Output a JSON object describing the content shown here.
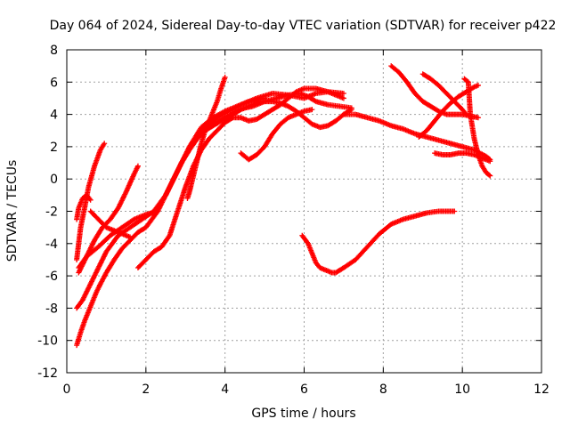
{
  "chart_data": {
    "type": "scatter",
    "title": "Day 064 of 2024, Sidereal Day-to-day VTEC variation (SDTVAR) for receiver p422",
    "xlabel": "GPS time / hours",
    "ylabel": "SDTVAR / TECUs",
    "xlim": [
      0,
      12
    ],
    "ylim": [
      -12,
      8
    ],
    "xticks": [
      "0",
      "2",
      "4",
      "6",
      "8",
      "10",
      "12"
    ],
    "yticks": [
      "-12",
      "-10",
      "-8",
      "-6",
      "-4",
      "-2",
      "0",
      "2",
      "4",
      "6",
      "8"
    ],
    "grid": true,
    "marker": "+",
    "color": "#ff0000",
    "series": [
      {
        "x": [
          0.25,
          0.35,
          0.45,
          0.55,
          0.7,
          0.85,
          0.95
        ],
        "y": [
          -5.0,
          -3.0,
          -1.8,
          -0.5,
          0.8,
          1.8,
          2.2
        ]
      },
      {
        "x": [
          0.25,
          0.3,
          0.4,
          0.5,
          0.6
        ],
        "y": [
          -2.5,
          -1.8,
          -1.2,
          -1.0,
          -1.3
        ]
      },
      {
        "x": [
          0.3,
          0.5,
          0.7,
          0.9,
          1.1,
          1.3,
          1.5,
          1.7,
          1.8
        ],
        "y": [
          -5.8,
          -4.8,
          -3.8,
          -3.0,
          -2.5,
          -1.8,
          -0.8,
          0.3,
          0.8
        ]
      },
      {
        "x": [
          0.3,
          0.5,
          0.8,
          1.1,
          1.4,
          1.7,
          2.0,
          2.3
        ],
        "y": [
          -5.5,
          -4.8,
          -4.2,
          -3.5,
          -3.0,
          -2.5,
          -2.2,
          -2.0
        ]
      },
      {
        "x": [
          0.6,
          0.8,
          1.0,
          1.2,
          1.4,
          1.6
        ],
        "y": [
          -2.0,
          -2.5,
          -3.0,
          -3.2,
          -3.4,
          -3.6
        ]
      },
      {
        "x": [
          0.25,
          0.4,
          0.6,
          0.8,
          1.0,
          1.3,
          1.6,
          1.9,
          2.2,
          2.5,
          2.8,
          3.1,
          3.4,
          3.7,
          4.0,
          4.3,
          4.6,
          5.0
        ],
        "y": [
          -8.0,
          -7.5,
          -6.5,
          -5.5,
          -4.5,
          -3.5,
          -3.0,
          -2.5,
          -2.0,
          -1.0,
          0.5,
          2.0,
          3.2,
          3.8,
          4.2,
          4.5,
          4.8,
          5.0
        ]
      },
      {
        "x": [
          0.25,
          0.35,
          0.45,
          0.55,
          0.65,
          0.75,
          0.85,
          1.0,
          1.2,
          1.4,
          1.6,
          1.8,
          2.0,
          2.3,
          2.6,
          2.9,
          3.2,
          3.5,
          3.8,
          4.1,
          4.4,
          4.8,
          5.2,
          5.6,
          6.0,
          6.3,
          6.6,
          7.0
        ],
        "y": [
          -10.3,
          -9.5,
          -8.8,
          -8.2,
          -7.6,
          -7.0,
          -6.5,
          -5.8,
          -5.0,
          -4.3,
          -3.8,
          -3.3,
          -3.0,
          -2.0,
          -0.5,
          1.0,
          2.3,
          3.2,
          3.8,
          4.2,
          4.6,
          5.0,
          5.3,
          5.2,
          5.0,
          5.3,
          5.4,
          5.3
        ]
      },
      {
        "x": [
          1.8,
          2.0,
          2.2,
          2.4,
          2.6,
          2.8,
          3.0,
          3.2,
          3.4,
          3.6,
          3.8,
          4.0,
          4.2,
          4.4,
          4.6,
          4.8,
          5.0,
          5.2,
          5.4,
          5.6,
          5.8,
          6.0,
          6.3,
          6.6,
          7.0
        ],
        "y": [
          -5.5,
          -5.0,
          -4.5,
          -4.2,
          -3.5,
          -2.0,
          -0.5,
          0.8,
          1.8,
          2.5,
          3.0,
          3.5,
          3.8,
          3.8,
          3.6,
          3.7,
          4.0,
          4.3,
          4.6,
          5.0,
          5.4,
          5.6,
          5.6,
          5.4,
          5.0
        ]
      },
      {
        "x": [
          2.5,
          2.7,
          2.9,
          3.1,
          3.3,
          3.5,
          3.7,
          3.9,
          4.1,
          4.3,
          4.5,
          4.7,
          5.0,
          5.3,
          5.6,
          5.9,
          6.1,
          6.3,
          6.6,
          6.9,
          7.2
        ],
        "y": [
          -1.0,
          0.0,
          1.0,
          1.8,
          2.5,
          3.0,
          3.3,
          3.6,
          3.9,
          4.2,
          4.4,
          4.5,
          4.8,
          5.0,
          5.2,
          5.3,
          5.1,
          4.8,
          4.6,
          4.5,
          4.4
        ]
      },
      {
        "x": [
          3.05,
          3.1,
          3.2,
          3.3,
          3.4,
          3.5,
          3.6,
          3.7,
          3.8,
          3.9,
          4.0
        ],
        "y": [
          -1.2,
          -0.8,
          0.2,
          1.2,
          2.2,
          3.0,
          3.6,
          4.2,
          4.8,
          5.6,
          6.3
        ]
      },
      {
        "x": [
          3.6,
          3.8,
          4.0,
          4.2,
          4.4,
          4.6,
          4.8,
          5.0,
          5.2,
          5.4,
          5.6,
          5.8,
          6.0,
          6.2,
          6.4,
          6.6,
          6.8,
          7.0,
          7.2
        ],
        "y": [
          3.2,
          3.5,
          3.8,
          4.0,
          4.3,
          4.5,
          4.7,
          4.8,
          4.8,
          4.7,
          4.5,
          4.2,
          3.8,
          3.4,
          3.2,
          3.3,
          3.6,
          4.0,
          4.3
        ]
      },
      {
        "x": [
          4.4,
          4.6,
          4.8,
          5.0,
          5.2,
          5.4,
          5.6,
          5.8,
          6.0,
          6.2
        ],
        "y": [
          1.6,
          1.2,
          1.5,
          2.0,
          2.8,
          3.4,
          3.8,
          4.0,
          4.2,
          4.3
        ]
      },
      {
        "x": [
          5.95,
          6.1,
          6.2,
          6.3,
          6.4,
          6.5,
          6.6,
          6.7,
          6.8,
          7.0,
          7.3,
          7.6,
          7.9,
          8.2,
          8.5,
          8.8,
          9.1,
          9.4,
          9.8
        ],
        "y": [
          -3.5,
          -4.0,
          -4.6,
          -5.2,
          -5.5,
          -5.6,
          -5.7,
          -5.8,
          -5.8,
          -5.5,
          -5.0,
          -4.2,
          -3.4,
          -2.8,
          -2.5,
          -2.3,
          -2.1,
          -2.0,
          -2.0
        ]
      },
      {
        "x": [
          7.0,
          7.3,
          7.6,
          7.9,
          8.2,
          8.5,
          8.8,
          9.1,
          9.4,
          9.7,
          10.0,
          10.3,
          10.6,
          10.7
        ],
        "y": [
          4.0,
          4.0,
          3.8,
          3.6,
          3.3,
          3.1,
          2.8,
          2.6,
          2.4,
          2.2,
          2.0,
          1.8,
          1.4,
          1.2
        ]
      },
      {
        "x": [
          8.2,
          8.4,
          8.6,
          8.8,
          9.0,
          9.2,
          9.4,
          9.6,
          9.8,
          10.0,
          10.2,
          10.4
        ],
        "y": [
          7.0,
          6.6,
          6.0,
          5.3,
          4.8,
          4.5,
          4.2,
          4.0,
          4.0,
          4.0,
          3.9,
          3.8
        ]
      },
      {
        "x": [
          9.0,
          9.2,
          9.4,
          9.6,
          9.8,
          10.0,
          10.1
        ],
        "y": [
          6.5,
          6.2,
          5.8,
          5.3,
          4.8,
          4.3,
          4.0
        ]
      },
      {
        "x": [
          8.9,
          9.1,
          9.3,
          9.5,
          9.7,
          9.9,
          10.1,
          10.3,
          10.4
        ],
        "y": [
          2.6,
          3.0,
          3.6,
          4.2,
          4.7,
          5.1,
          5.4,
          5.7,
          5.8
        ]
      },
      {
        "x": [
          9.3,
          9.5,
          9.7,
          9.9,
          10.1,
          10.3,
          10.5,
          10.7
        ],
        "y": [
          1.6,
          1.5,
          1.5,
          1.6,
          1.6,
          1.5,
          1.3,
          1.1
        ]
      },
      {
        "x": [
          10.05,
          10.1,
          10.15,
          10.2,
          10.3,
          10.4,
          10.5,
          10.6,
          10.7
        ],
        "y": [
          6.2,
          6.1,
          6.0,
          4.0,
          2.5,
          1.5,
          0.8,
          0.4,
          0.2
        ]
      }
    ]
  }
}
